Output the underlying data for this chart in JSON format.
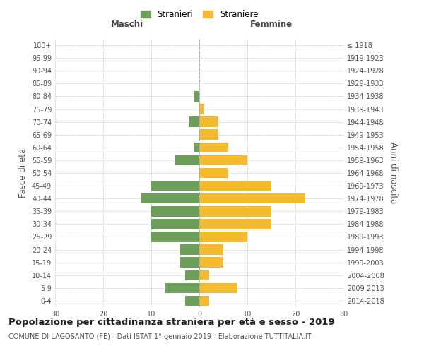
{
  "age_groups": [
    "0-4",
    "5-9",
    "10-14",
    "15-19",
    "20-24",
    "25-29",
    "30-34",
    "35-39",
    "40-44",
    "45-49",
    "50-54",
    "55-59",
    "60-64",
    "65-69",
    "70-74",
    "75-79",
    "80-84",
    "85-89",
    "90-94",
    "95-99",
    "100+"
  ],
  "birth_years": [
    "2014-2018",
    "2009-2013",
    "2004-2008",
    "1999-2003",
    "1994-1998",
    "1989-1993",
    "1984-1988",
    "1979-1983",
    "1974-1978",
    "1969-1973",
    "1964-1968",
    "1959-1963",
    "1954-1958",
    "1949-1953",
    "1944-1948",
    "1939-1943",
    "1934-1938",
    "1929-1933",
    "1924-1928",
    "1919-1923",
    "≤ 1918"
  ],
  "males": [
    3,
    7,
    3,
    4,
    4,
    10,
    10,
    10,
    12,
    10,
    0,
    5,
    1,
    0,
    2,
    0,
    1,
    0,
    0,
    0,
    0
  ],
  "females": [
    2,
    8,
    2,
    5,
    5,
    10,
    15,
    15,
    22,
    15,
    6,
    10,
    6,
    4,
    4,
    1,
    0,
    0,
    0,
    0,
    0
  ],
  "male_color": "#6d9e5a",
  "female_color": "#f5bb30",
  "bar_height": 0.8,
  "xlim": 30,
  "title": "Popolazione per cittadinanza straniera per età e sesso - 2019",
  "subtitle": "COMUNE DI LAGOSANTO (FE) - Dati ISTAT 1° gennaio 2019 - Elaborazione TUTTITALIA.IT",
  "xlabel_left": "Maschi",
  "xlabel_right": "Femmine",
  "ylabel_left": "Fasce di età",
  "ylabel_right": "Anni di nascita",
  "legend_male": "Stranieri",
  "legend_female": "Straniere",
  "grid_color": "#cccccc",
  "background_color": "#ffffff",
  "title_fontsize": 9.5,
  "subtitle_fontsize": 7,
  "tick_fontsize": 7,
  "label_fontsize": 8.5
}
